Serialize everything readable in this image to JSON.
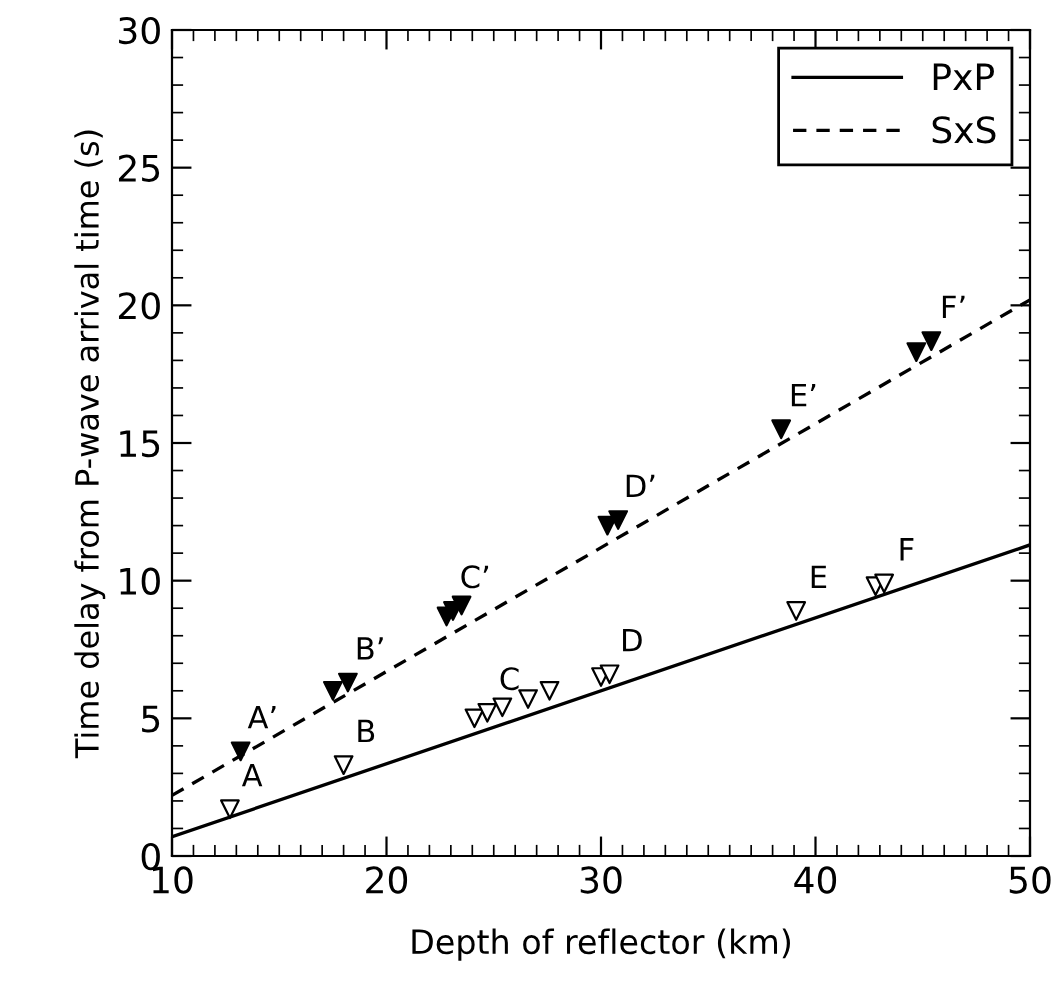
{
  "chart_data": {
    "type": "line",
    "xlabel": "Depth of reflector (km)",
    "ylabel": "Time delay from P-wave arrival time (s)",
    "xlim": [
      10,
      50
    ],
    "xticks": [
      10,
      20,
      30,
      40,
      50
    ],
    "ylim": [
      0,
      30
    ],
    "yticks": [
      0,
      5,
      10,
      15,
      20,
      25,
      30
    ],
    "grid": false,
    "legend": "top right",
    "series": [
      {
        "name": "PxP",
        "line_style": "solid",
        "color": "#000000",
        "x": [
          10,
          50
        ],
        "values": [
          0.7,
          11.3
        ]
      },
      {
        "name": "SxS",
        "line_style": "dashed",
        "color": "#000000",
        "x": [
          10,
          50
        ],
        "values": [
          2.2,
          20.2
        ]
      },
      {
        "type": "scatter",
        "marker": "triangle",
        "color": "#ffffff",
        "x": [
          12.7,
          18.0,
          24.1,
          24.7,
          25.4,
          26.6,
          27.6,
          30.0,
          30.4,
          39.1,
          42.8,
          43.2
        ],
        "values": [
          1.7,
          3.3,
          5.0,
          5.2,
          5.4,
          5.7,
          6.0,
          6.5,
          6.6,
          8.9,
          9.8,
          9.9
        ]
      },
      {
        "type": "scatter",
        "marker": "triangle",
        "color": "#000000",
        "x": [
          13.2,
          17.5,
          18.2,
          22.8,
          23.1,
          23.5,
          30.3,
          30.8,
          38.4,
          44.7,
          45.4
        ],
        "values": [
          3.8,
          6.0,
          6.3,
          8.7,
          8.9,
          9.1,
          12.0,
          12.2,
          15.5,
          18.3,
          18.7
        ]
      }
    ],
    "annotations": [
      {
        "text": "A",
        "x": 12.7,
        "y": 1.7
      },
      {
        "text": "B",
        "x": 18.0,
        "y": 3.3
      },
      {
        "text": "C",
        "x": 24.7,
        "y": 5.2
      },
      {
        "text": "D",
        "x": 30.4,
        "y": 6.6
      },
      {
        "text": "E",
        "x": 39.1,
        "y": 8.9
      },
      {
        "text": "F",
        "x": 43.2,
        "y": 9.9
      },
      {
        "text": "A’",
        "x": 13.2,
        "y": 3.8
      },
      {
        "text": "B’",
        "x": 18.2,
        "y": 6.3
      },
      {
        "text": "C’",
        "x": 23.1,
        "y": 8.9
      },
      {
        "text": "D’",
        "x": 30.8,
        "y": 12.2
      },
      {
        "text": "E’",
        "x": 38.4,
        "y": 15.5
      },
      {
        "text": "F’",
        "x": 45.4,
        "y": 18.7
      }
    ]
  }
}
